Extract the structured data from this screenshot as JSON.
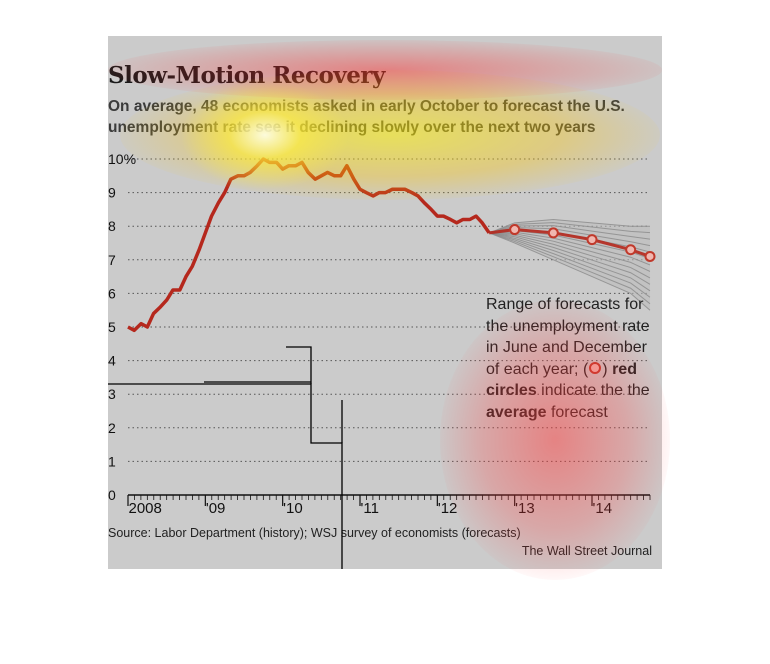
{
  "title": "Slow-Motion Recovery",
  "subtitle": "On average, 48 economists asked in early October to forecast the U.S. unemployment rate see it declining slowly over the next two years",
  "annotation": {
    "line1": "Range of forecasts for the unemployment rate in June and December of each year; (",
    "bold1": "red circles",
    "line2": " indicate the the ",
    "bold2": "average",
    "line3": " forecast"
  },
  "source": "Source: Labor Department (history); WSJ survey of economists (forecasts)",
  "credit": "The Wall Street Journal",
  "colors": {
    "background": "#cbcbcb",
    "history_line": "#b5281d",
    "forecast_lines": "#8a8a8a",
    "average_circle": "#c0392b",
    "grid": "#555555"
  },
  "chart_data": {
    "type": "line",
    "title": "Slow-Motion Recovery",
    "ylim": [
      0,
      10
    ],
    "yticks": [
      "0",
      "1",
      "2",
      "3",
      "4",
      "5",
      "6",
      "7",
      "8",
      "9",
      "10%"
    ],
    "xlim": [
      2008.0,
      2014.75
    ],
    "xticks": [
      {
        "x": 2008.0,
        "label": "2008"
      },
      {
        "x": 2009.0,
        "label": "'09"
      },
      {
        "x": 2010.0,
        "label": "'10"
      },
      {
        "x": 2011.0,
        "label": "'11"
      },
      {
        "x": 2012.0,
        "label": "'12"
      },
      {
        "x": 2013.0,
        "label": "'13"
      },
      {
        "x": 2014.0,
        "label": "'14"
      }
    ],
    "grid": "dotted horizontal",
    "series": [
      {
        "name": "",
        "kind": "history",
        "x": [
          2008.0,
          2008.08,
          2008.17,
          2008.25,
          2008.33,
          2008.42,
          2008.5,
          2008.58,
          2008.67,
          2008.75,
          2008.83,
          2008.92,
          2009.0,
          2009.08,
          2009.17,
          2009.25,
          2009.33,
          2009.42,
          2009.5,
          2009.58,
          2009.67,
          2009.75,
          2009.83,
          2009.92,
          2010.0,
          2010.08,
          2010.17,
          2010.25,
          2010.33,
          2010.42,
          2010.5,
          2010.58,
          2010.67,
          2010.75,
          2010.83,
          2010.92,
          2011.0,
          2011.08,
          2011.17,
          2011.25,
          2011.33,
          2011.42,
          2011.5,
          2011.58,
          2011.67,
          2011.75,
          2011.83,
          2011.92,
          2012.0,
          2012.08,
          2012.17,
          2012.25,
          2012.33,
          2012.42,
          2012.5,
          2012.58,
          2012.67
        ],
        "values": [
          5.0,
          4.9,
          5.1,
          5.0,
          5.4,
          5.6,
          5.8,
          6.1,
          6.1,
          6.5,
          6.8,
          7.3,
          7.8,
          8.3,
          8.7,
          9.0,
          9.4,
          9.5,
          9.5,
          9.6,
          9.8,
          10.0,
          9.9,
          9.9,
          9.7,
          9.8,
          9.8,
          9.9,
          9.6,
          9.4,
          9.5,
          9.6,
          9.5,
          9.5,
          9.8,
          9.4,
          9.1,
          9.0,
          8.9,
          9.0,
          9.0,
          9.1,
          9.1,
          9.1,
          9.0,
          8.9,
          8.7,
          8.5,
          8.3,
          8.3,
          8.2,
          8.1,
          8.2,
          8.2,
          8.3,
          8.1,
          7.8
        ]
      },
      {
        "name": "",
        "kind": "average",
        "x": [
          2012.67,
          2013.0,
          2013.5,
          2014.0,
          2014.5,
          2014.75
        ],
        "values": [
          7.8,
          7.9,
          7.8,
          7.6,
          7.3,
          7.1
        ]
      }
    ],
    "forecast_range": {
      "x": [
        2012.67,
        2013.0,
        2013.5,
        2014.0,
        2014.5,
        2014.75
      ],
      "low": [
        7.8,
        7.5,
        7.0,
        6.5,
        6.0,
        5.5
      ],
      "high": [
        7.8,
        8.1,
        8.2,
        8.1,
        8.0,
        8.0
      ]
    }
  }
}
